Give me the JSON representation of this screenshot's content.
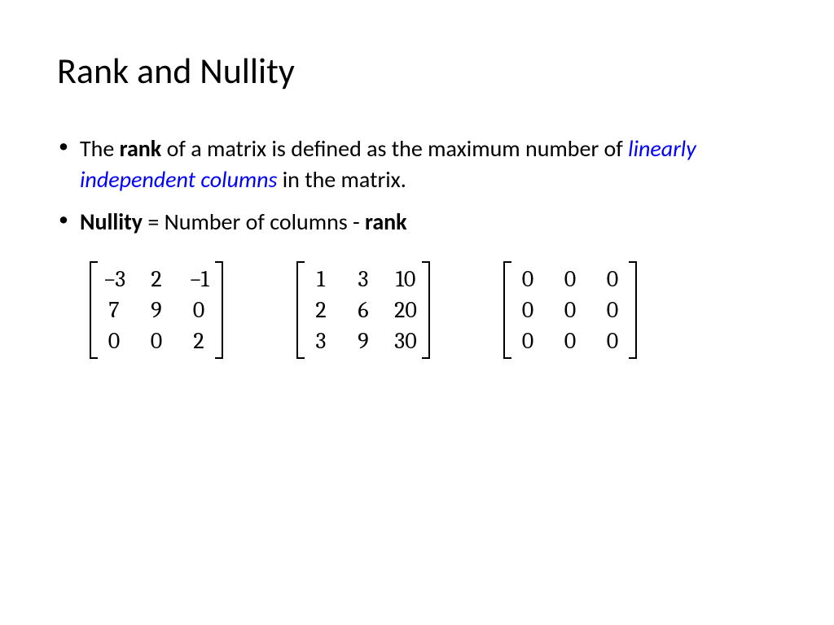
{
  "title": "Rank and Nullity",
  "bullet1": {
    "pre": "The ",
    "rank": "rank",
    "mid": " of a matrix is defined as the maximum number of ",
    "linearly": "linearly independent columns",
    "post": " in the matrix."
  },
  "bullet2": {
    "nullity": "Nullity",
    "eq": " = Number of columns - ",
    "rank": "rank"
  },
  "matrices": {
    "m1": {
      "cells": [
        "−3",
        "2",
        "−1",
        "7",
        "9",
        "0",
        "0",
        "0",
        "2"
      ]
    },
    "m2": {
      "cells": [
        "1",
        "3",
        "10",
        "2",
        "6",
        "20",
        "3",
        "9",
        "30"
      ]
    },
    "m3": {
      "cells": [
        "0",
        "0",
        "0",
        "0",
        "0",
        "0",
        "0",
        "0",
        "0"
      ]
    }
  },
  "style": {
    "background_color": "#ffffff",
    "text_color": "#000000",
    "link_color": "#0000ff",
    "title_fontsize": 44,
    "body_fontsize": 28,
    "matrix_fontsize": 28,
    "matrix_font": "Cambria Math"
  }
}
